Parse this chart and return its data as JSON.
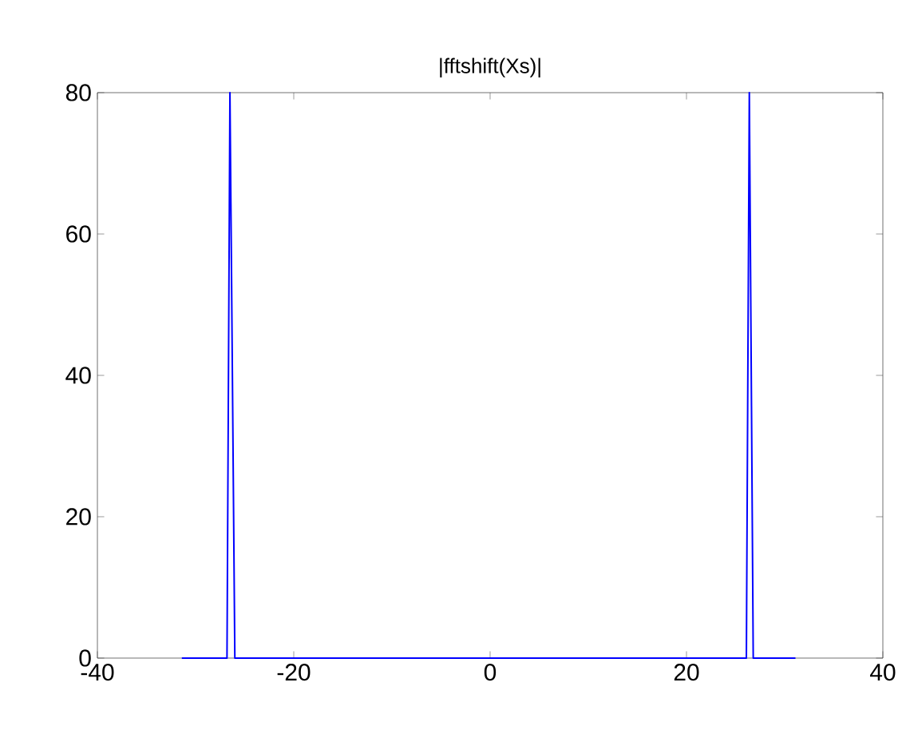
{
  "chart_data": {
    "type": "line",
    "title": "|fftshift(Xs)|",
    "x": [
      -31.4,
      -26.8,
      -26.5,
      -26.0,
      26.1,
      26.4,
      26.8,
      31.1
    ],
    "values": [
      0,
      0,
      80,
      0,
      0,
      80,
      0,
      0
    ],
    "color": "#0000ff",
    "xlim": [
      -40,
      40
    ],
    "ylim": [
      0,
      80
    ],
    "xticks": [
      -40,
      -20,
      0,
      20,
      40
    ],
    "yticks": [
      0,
      20,
      40,
      60,
      80
    ],
    "grid": false,
    "marker": "none",
    "line_style": "solid"
  }
}
